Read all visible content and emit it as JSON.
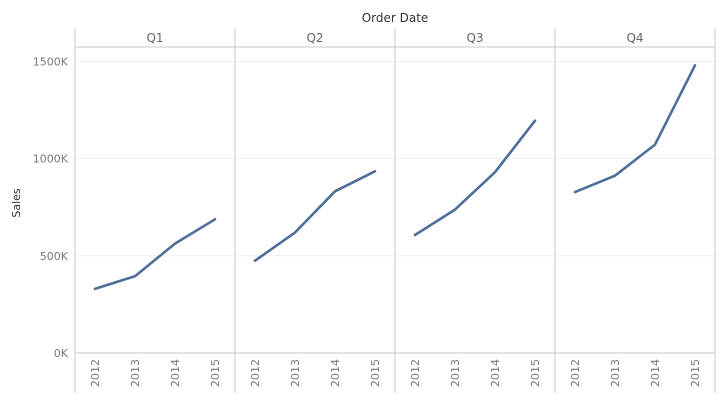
{
  "chart_data": {
    "type": "line",
    "title": "",
    "column_header": "Order Date",
    "ylabel": "Sales",
    "ylim": [
      0,
      1600000
    ],
    "yticks": [
      {
        "value": 0,
        "label": "0K"
      },
      {
        "value": 500000,
        "label": "500K"
      },
      {
        "value": 1000000,
        "label": "1000K"
      },
      {
        "value": 1500000,
        "label": "1500K"
      }
    ],
    "grid": true,
    "line_color": "#4e6e9a",
    "panels": [
      {
        "label": "Q1",
        "x": [
          "2012",
          "2013",
          "2014",
          "2015"
        ],
        "values": [
          330000,
          395000,
          563000,
          688000
        ]
      },
      {
        "label": "Q2",
        "x": [
          "2012",
          "2013",
          "2014",
          "2015"
        ],
        "values": [
          475000,
          620000,
          832000,
          935000
        ]
      },
      {
        "label": "Q3",
        "x": [
          "2012",
          "2013",
          "2014",
          "2015"
        ],
        "values": [
          607000,
          738000,
          930000,
          1195000
        ]
      },
      {
        "label": "Q4",
        "x": [
          "2012",
          "2013",
          "2014",
          "2015"
        ],
        "values": [
          828000,
          912000,
          1072000,
          1480000
        ]
      }
    ]
  }
}
